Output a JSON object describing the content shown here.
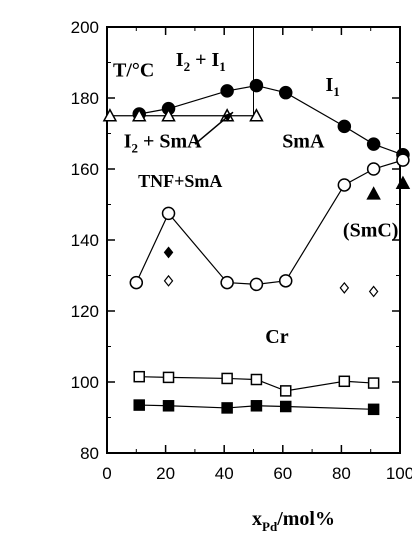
{
  "chart_data": {
    "type": "scatter",
    "title": "",
    "xlabel": {
      "main": "x",
      "sub": "Pd",
      "rest": "/mol%"
    },
    "ylabel": "T/°C",
    "xlim": [
      0,
      100
    ],
    "ylim": [
      80,
      200
    ],
    "x_ticks": [
      0,
      20,
      40,
      60,
      80,
      100
    ],
    "y_ticks": [
      80,
      100,
      120,
      140,
      160,
      180,
      200
    ],
    "grid": false,
    "divider_x": 50,
    "series": [
      {
        "marker": "circle-filled",
        "connected": true,
        "x": [
          11,
          21,
          41,
          51,
          61,
          81,
          91,
          101
        ],
        "y": [
          175.5,
          177,
          182,
          183.5,
          181.5,
          172,
          167,
          164
        ]
      },
      {
        "marker": "circle-open",
        "connected": true,
        "x": [
          10,
          21,
          41,
          51,
          61,
          81,
          91,
          101
        ],
        "y": [
          128,
          147.5,
          128,
          127.5,
          128.5,
          155.5,
          160,
          162.5
        ]
      },
      {
        "marker": "triangle-open",
        "connected": true,
        "x": [
          1,
          11,
          21,
          41,
          51
        ],
        "y": [
          175,
          175,
          175,
          175,
          175
        ]
      },
      {
        "marker": "triangle-filled",
        "connected": false,
        "x": [
          91,
          101
        ],
        "y": [
          153,
          156
        ]
      },
      {
        "marker": "diamond-filled",
        "connected": false,
        "x": [
          21
        ],
        "y": [
          136.5
        ]
      },
      {
        "marker": "diamond-open",
        "connected": false,
        "x": [
          21,
          81,
          91
        ],
        "y": [
          128.5,
          126.5,
          125.5
        ]
      },
      {
        "marker": "square-open",
        "connected": true,
        "x": [
          11,
          21,
          41,
          51,
          61,
          81,
          91
        ],
        "y": [
          101.5,
          101.3,
          101,
          100.7,
          97.5,
          100.2,
          99.7
        ]
      },
      {
        "marker": "square-filled",
        "connected": true,
        "x": [
          11,
          21,
          41,
          51,
          61,
          91
        ],
        "y": [
          93.5,
          93.3,
          92.7,
          93.3,
          93.1,
          92.3
        ]
      }
    ],
    "annotations": [
      {
        "text": "I2 + I1",
        "parts": [
          [
            "I",
            ""
          ],
          [
            "2",
            "sub"
          ],
          [
            " + I",
            ""
          ],
          [
            "1",
            "sub"
          ]
        ],
        "x": 32,
        "y": 189,
        "cls": "region-label"
      },
      {
        "text": "I1",
        "parts": [
          [
            "I",
            ""
          ],
          [
            "1",
            "sub"
          ]
        ],
        "x": 77,
        "y": 182,
        "cls": "region-label"
      },
      {
        "text": "I2 + SmA",
        "parts": [
          [
            "I",
            ""
          ],
          [
            "2",
            "sub"
          ],
          [
            " + SmA",
            ""
          ]
        ],
        "x": 19,
        "y": 166,
        "cls": "region-label"
      },
      {
        "text": "SmA",
        "parts": [
          [
            "SmA",
            ""
          ]
        ],
        "x": 67,
        "y": 166,
        "cls": "region-label"
      },
      {
        "text": "TNF+SmA",
        "parts": [
          [
            "TNF+SmA",
            ""
          ]
        ],
        "x": 25,
        "y": 155,
        "cls": "region-label-sm"
      },
      {
        "text": "(SmC)",
        "parts": [
          [
            "(SmC)",
            ""
          ]
        ],
        "x": 90,
        "y": 141,
        "cls": "region-label"
      },
      {
        "text": "Cr",
        "parts": [
          [
            "Cr",
            ""
          ]
        ],
        "x": 58,
        "y": 111,
        "cls": "region-label"
      }
    ],
    "arrow": {
      "from": [
        30,
        167
      ],
      "to": [
        43,
        176
      ]
    }
  }
}
